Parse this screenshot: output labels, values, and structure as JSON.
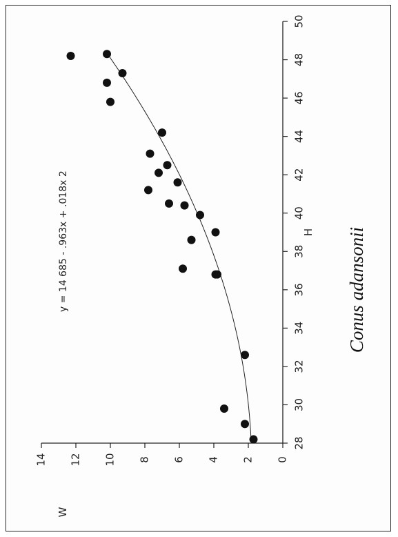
{
  "chart_data": {
    "type": "scatter",
    "title": "",
    "xlabel": "H",
    "ylabel": "W",
    "xlim": [
      28,
      50
    ],
    "ylim": [
      0,
      14
    ],
    "x_ticks": [
      28,
      30,
      32,
      34,
      36,
      38,
      40,
      42,
      44,
      46,
      48,
      50
    ],
    "y_ticks": [
      0,
      2,
      4,
      6,
      8,
      10,
      12,
      14
    ],
    "equation_label": "y = 14 685 - .963x + .018x 2",
    "species_label": "Conus adansonii",
    "fit": {
      "a": 14.685,
      "b": -0.963,
      "c": 0.018,
      "x_range": [
        28.2,
        48.2
      ]
    },
    "series": [
      {
        "points": [
          {
            "x": 28.2,
            "y": 1.7
          },
          {
            "x": 29.0,
            "y": 2.2
          },
          {
            "x": 29.8,
            "y": 3.4
          },
          {
            "x": 32.6,
            "y": 2.2
          },
          {
            "x": 36.8,
            "y": 3.8
          },
          {
            "x": 36.8,
            "y": 3.9
          },
          {
            "x": 37.1,
            "y": 5.8
          },
          {
            "x": 38.6,
            "y": 5.3
          },
          {
            "x": 39.0,
            "y": 3.9
          },
          {
            "x": 39.9,
            "y": 4.8
          },
          {
            "x": 40.4,
            "y": 5.7
          },
          {
            "x": 40.5,
            "y": 6.6
          },
          {
            "x": 41.2,
            "y": 7.8
          },
          {
            "x": 41.6,
            "y": 6.1
          },
          {
            "x": 42.1,
            "y": 7.2
          },
          {
            "x": 42.5,
            "y": 6.7
          },
          {
            "x": 43.1,
            "y": 7.7
          },
          {
            "x": 44.2,
            "y": 7.0
          },
          {
            "x": 45.8,
            "y": 10.0
          },
          {
            "x": 46.8,
            "y": 10.2
          },
          {
            "x": 47.3,
            "y": 9.3
          },
          {
            "x": 48.2,
            "y": 12.3
          },
          {
            "x": 48.3,
            "y": 10.2
          }
        ]
      }
    ]
  }
}
